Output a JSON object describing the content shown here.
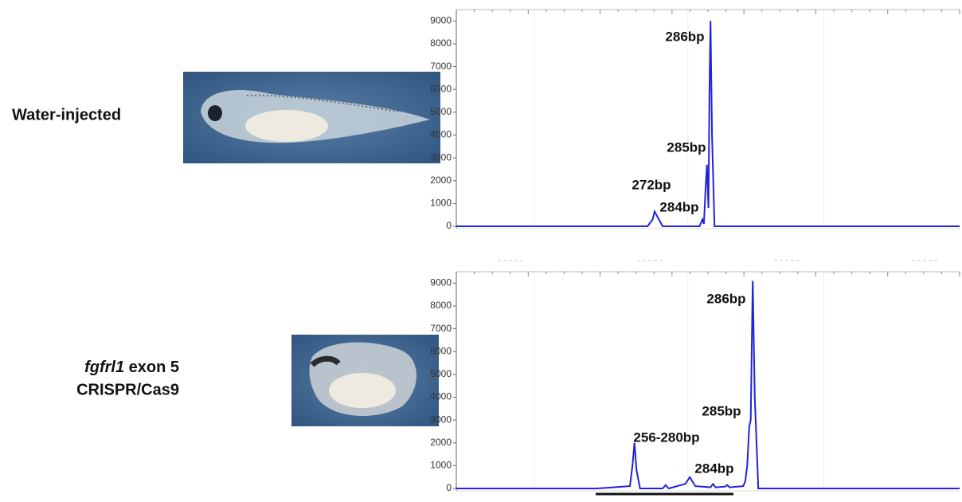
{
  "chart_data": [
    {
      "type": "line",
      "xlim": [
        0,
        100
      ],
      "ylim": [
        0,
        9500
      ],
      "yticks": [
        0,
        1000,
        2000,
        3000,
        4000,
        5000,
        6000,
        7000,
        8000,
        9000
      ],
      "series": [
        {
          "color": "#2222dd",
          "x": [
            0,
            38,
            39,
            39.4,
            40,
            41,
            48.3,
            48.7,
            48.9,
            49.2,
            49.5,
            49.8,
            50.1,
            50.3,
            50.5,
            50.8,
            51.3,
            100
          ],
          "values": [
            0,
            0,
            300,
            650,
            400,
            0,
            0,
            200,
            300,
            100,
            1500,
            2700,
            800,
            6000,
            9000,
            4000,
            0,
            0
          ]
        }
      ],
      "annotations": [
        "286bp",
        "285bp",
        "272bp",
        "284bp"
      ]
    },
    {
      "type": "line",
      "xlim": [
        0,
        100
      ],
      "ylim": [
        0,
        9500
      ],
      "yticks": [
        0,
        1000,
        2000,
        3000,
        4000,
        5000,
        6000,
        7000,
        8000,
        9000
      ],
      "series": [
        {
          "color": "#2222dd",
          "x": [
            0,
            28,
            34.5,
            35,
            35.4,
            35.8,
            36.5,
            41,
            41.6,
            42.2,
            45.5,
            46.4,
            47.5,
            50.5,
            51,
            51.5,
            53.4,
            53.8,
            54.3,
            57,
            57.4,
            57.8,
            58.2,
            58.5,
            58.9,
            59.3,
            60,
            100
          ],
          "values": [
            0,
            0,
            100,
            1000,
            2000,
            800,
            0,
            0,
            150,
            0,
            200,
            500,
            100,
            50,
            200,
            50,
            80,
            150,
            50,
            100,
            300,
            1000,
            2700,
            3000,
            9100,
            4000,
            0,
            0
          ]
        }
      ],
      "annotations": [
        "286bp",
        "285bp",
        "256-280bp",
        "284bp"
      ]
    }
  ],
  "samples": [
    {
      "label": "Water-injected"
    },
    {
      "gene": "fgfrl1",
      "label_rest": "exon 5",
      "label_line2": "CRISPR/Cas9"
    }
  ]
}
